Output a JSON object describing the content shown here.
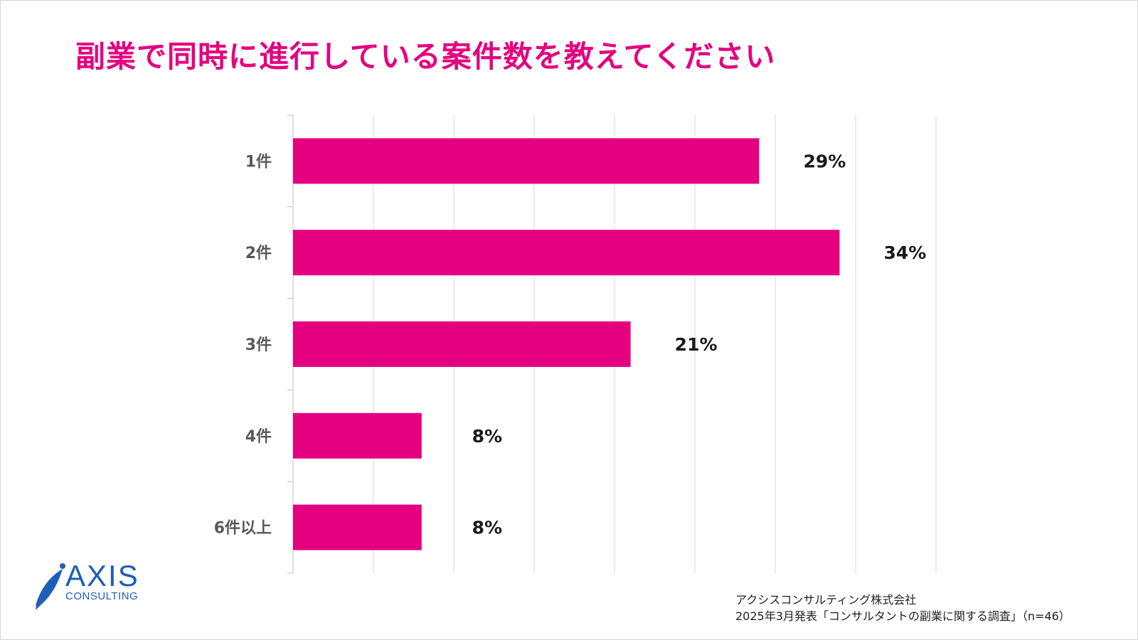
{
  "page": {
    "title": "副業で同時に進行している案件数を教えてください"
  },
  "chart_data": {
    "type": "bar",
    "orientation": "horizontal",
    "title": "副業で同時に進行している案件数を教えてください",
    "categories": [
      "1件",
      "2件",
      "3件",
      "4件",
      "6件以上"
    ],
    "values": [
      29,
      34,
      21,
      8,
      8
    ],
    "value_labels": [
      "29%",
      "34%",
      "21%",
      "8%",
      "8%"
    ],
    "unit": "%",
    "xlim": [
      0,
      40
    ],
    "grid": true,
    "legend": "none",
    "bar_color": "#e4007f"
  },
  "logo": {
    "name": "AXIS",
    "sub": "CONSULTING",
    "color": "#1d5fb8"
  },
  "source": {
    "line1": "アクシスコンサルティング株式会社",
    "line2": "2025年3月発表「コンサルタントの副業に関する調査」（n=46）"
  }
}
